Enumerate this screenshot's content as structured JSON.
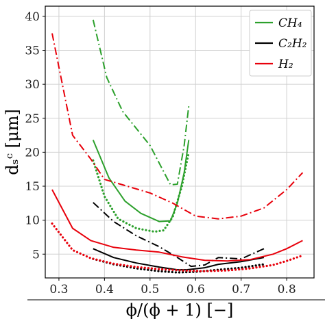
{
  "chart_data": {
    "type": "line",
    "title": "",
    "xlabel": "ϕ/(ϕ + 1) [−]",
    "ylabel": "dₛᶜ [μm]",
    "xlim": [
      0.27,
      0.86
    ],
    "ylim": [
      1.5,
      41.5
    ],
    "xticks": [
      0.3,
      0.4,
      0.5,
      0.6,
      0.7,
      0.8
    ],
    "xtick_labels": [
      "0.3",
      "0.4",
      "0.5",
      "0.6",
      "0.7",
      "0.8"
    ],
    "yticks": [
      5,
      10,
      15,
      20,
      25,
      30,
      35,
      40
    ],
    "ytick_labels": [
      "5",
      "10",
      "15",
      "20",
      "25",
      "30",
      "35",
      "40"
    ],
    "grid": true,
    "legend_position": "top-right",
    "legend": [
      {
        "label": "CH₄",
        "color": "#2ca02c"
      },
      {
        "label": "C₂H₂",
        "color": "#000000"
      },
      {
        "label": "H₂",
        "color": "#e8000b"
      }
    ],
    "series": [
      {
        "group": "CH4",
        "color": "#2ca02c",
        "style": "dashdot",
        "x": [
          0.375,
          0.405,
          0.44,
          0.5,
          0.545,
          0.56,
          0.575,
          0.585
        ],
        "y": [
          39.5,
          31,
          26,
          21,
          15.2,
          15.3,
          21,
          26.8
        ]
      },
      {
        "group": "CH4",
        "color": "#2ca02c",
        "style": "solid",
        "x": [
          0.375,
          0.41,
          0.445,
          0.48,
          0.52,
          0.545,
          0.56,
          0.575,
          0.585
        ],
        "y": [
          21.8,
          16.2,
          12.8,
          11.0,
          9.8,
          9.9,
          12.5,
          17.0,
          21.8
        ]
      },
      {
        "group": "CH4",
        "color": "#2ca02c",
        "style": "dotted",
        "x": [
          0.375,
          0.4,
          0.43,
          0.47,
          0.51,
          0.53,
          0.55,
          0.57,
          0.585
        ],
        "y": [
          18.8,
          13.5,
          10.2,
          8.8,
          8.3,
          8.5,
          10.5,
          15.0,
          20.0
        ]
      },
      {
        "group": "C2H2",
        "color": "#000000",
        "style": "dashdot",
        "x": [
          0.375,
          0.42,
          0.47,
          0.52,
          0.56,
          0.59,
          0.62,
          0.65,
          0.7,
          0.75
        ],
        "y": [
          12.6,
          9.8,
          7.7,
          6.1,
          4.5,
          3.2,
          3.4,
          4.5,
          4.3,
          5.8
        ]
      },
      {
        "group": "C2H2",
        "color": "#000000",
        "style": "solid",
        "x": [
          0.375,
          0.42,
          0.47,
          0.52,
          0.56,
          0.58,
          0.62,
          0.65,
          0.7,
          0.75
        ],
        "y": [
          5.8,
          4.5,
          3.7,
          3.1,
          2.7,
          2.7,
          3.0,
          3.5,
          3.9,
          4.5
        ]
      },
      {
        "group": "C2H2",
        "color": "#000000",
        "style": "dotted",
        "x": [
          0.375,
          0.42,
          0.47,
          0.52,
          0.56,
          0.6,
          0.65,
          0.7,
          0.75
        ],
        "y": [
          4.3,
          3.5,
          2.9,
          2.5,
          2.3,
          2.4,
          2.7,
          3.0,
          3.5
        ]
      },
      {
        "group": "H2",
        "color": "#e8000b",
        "style": "dashdot",
        "x": [
          0.285,
          0.33,
          0.37,
          0.4,
          0.45,
          0.5,
          0.55,
          0.6,
          0.65,
          0.7,
          0.75,
          0.8,
          0.835
        ],
        "y": [
          37.5,
          22.5,
          19.0,
          16.0,
          15.0,
          14.0,
          12.5,
          10.6,
          10.2,
          10.6,
          11.8,
          14.5,
          17.0
        ]
      },
      {
        "group": "H2",
        "color": "#e8000b",
        "style": "solid",
        "x": [
          0.285,
          0.33,
          0.37,
          0.42,
          0.47,
          0.52,
          0.57,
          0.62,
          0.67,
          0.72,
          0.77,
          0.8,
          0.835
        ],
        "y": [
          14.5,
          8.8,
          7.0,
          6.0,
          5.6,
          5.3,
          4.6,
          4.1,
          4.0,
          4.2,
          5.0,
          5.8,
          7.0
        ]
      },
      {
        "group": "H2",
        "color": "#e8000b",
        "style": "dotted",
        "x": [
          0.285,
          0.33,
          0.37,
          0.42,
          0.47,
          0.52,
          0.57,
          0.62,
          0.67,
          0.72,
          0.77,
          0.8,
          0.835
        ],
        "y": [
          9.5,
          5.6,
          4.4,
          3.6,
          3.1,
          2.8,
          2.6,
          2.5,
          2.6,
          2.9,
          3.4,
          4.0,
          4.8
        ]
      }
    ]
  }
}
